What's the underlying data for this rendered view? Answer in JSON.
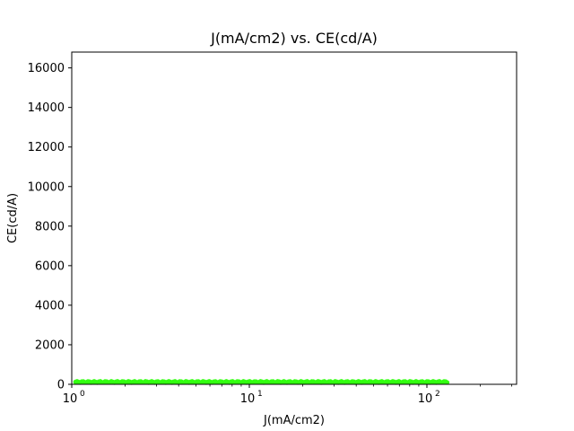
{
  "chart_data": {
    "type": "scatter",
    "title": "J(mA/cm2) vs. CE(cd/A)",
    "xlabel": "J(mA/cm2)",
    "ylabel": "CE(cd/A)",
    "xscale": "log",
    "xlim": [
      1,
      320
    ],
    "ylim": [
      0,
      16800
    ],
    "yticks": [
      0,
      2000,
      4000,
      6000,
      8000,
      10000,
      12000,
      14000,
      16000
    ],
    "xticks": [
      {
        "value": 1,
        "base": "10",
        "exp": "0"
      },
      {
        "value": 10,
        "base": "10",
        "exp": "1"
      },
      {
        "value": 100,
        "base": "10",
        "exp": "2"
      }
    ],
    "series": [
      {
        "name": "CE",
        "color": "#33ff11",
        "x_range": [
          1.05,
          130
        ],
        "y_range": [
          90,
          150
        ],
        "n_points": 240
      }
    ]
  }
}
